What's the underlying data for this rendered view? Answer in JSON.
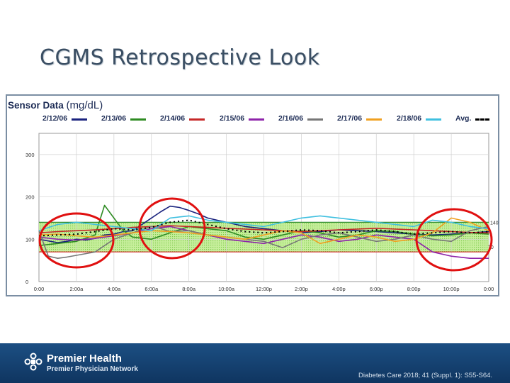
{
  "slide": {
    "title": "CGMS Retrospective Look"
  },
  "chart_data": {
    "type": "line",
    "title": "Sensor Data",
    "title_unit": "(mg/dL)",
    "x_ticks": [
      "0:00",
      "2:00a",
      "4:00a",
      "6:00a",
      "8:00a",
      "10:00a",
      "12:00p",
      "2:00p",
      "4:00p",
      "6:00p",
      "8:00p",
      "10:00p",
      "0:00"
    ],
    "x_range_hours": [
      0,
      24
    ],
    "y_ticks": [
      0,
      100,
      200,
      300
    ],
    "y_tick_labels": [
      "0",
      "100",
      "200",
      "300"
    ],
    "ylim": [
      0,
      350
    ],
    "target_range": {
      "low": 70,
      "high": 140,
      "right_labels": [
        "140",
        "70"
      ]
    },
    "grid": true,
    "legend_position": "top",
    "series": [
      {
        "name": "2/12/06",
        "color": "#1a237e",
        "x": [
          0,
          0.5,
          1,
          1.5,
          2,
          2.5,
          3,
          3.5,
          4,
          4.5,
          5,
          5.5,
          6,
          6.5,
          7,
          7.5,
          8,
          8.5,
          9,
          10,
          11,
          12,
          13,
          14,
          15,
          16,
          17,
          18,
          19,
          20,
          21,
          22,
          23,
          24
        ],
        "y": [
          100,
          96,
          92,
          95,
          100,
          98,
          102,
          110,
          112,
          118,
          120,
          135,
          150,
          165,
          178,
          175,
          168,
          160,
          150,
          140,
          130,
          125,
          120,
          115,
          118,
          122,
          120,
          118,
          115,
          112,
          110,
          112,
          115,
          118
        ]
      },
      {
        "name": "2/13/06",
        "color": "#2e8b22",
        "x": [
          0,
          1,
          2,
          3,
          3.5,
          4,
          4.5,
          5,
          6,
          7,
          8,
          9,
          10,
          11,
          12,
          13,
          14,
          15,
          16,
          17,
          18,
          19,
          20,
          21,
          22,
          23,
          24
        ],
        "y": [
          85,
          90,
          95,
          110,
          180,
          150,
          120,
          105,
          100,
          115,
          130,
          125,
          120,
          105,
          100,
          110,
          120,
          115,
          105,
          110,
          120,
          118,
          112,
          108,
          110,
          115,
          112
        ]
      },
      {
        "name": "2/14/06",
        "color": "#c62828",
        "x": [
          0,
          1,
          2,
          3,
          4,
          5,
          6,
          7,
          8,
          9,
          10,
          11,
          12,
          13,
          14,
          15,
          16,
          17,
          18,
          19,
          20,
          21,
          22,
          23,
          24
        ],
        "y": [
          115,
          118,
          120,
          122,
          125,
          128,
          130,
          132,
          130,
          128,
          126,
          124,
          122,
          120,
          118,
          120,
          122,
          124,
          126,
          124,
          122,
          120,
          118,
          116,
          115
        ]
      },
      {
        "name": "2/15/06",
        "color": "#8e24aa",
        "x": [
          0,
          1,
          2,
          3,
          4,
          5,
          6,
          7,
          8,
          9,
          10,
          11,
          12,
          13,
          14,
          15,
          16,
          17,
          18,
          19,
          20,
          21,
          22,
          23,
          24
        ],
        "y": [
          105,
          100,
          98,
          102,
          108,
          115,
          125,
          130,
          120,
          110,
          100,
          95,
          90,
          100,
          110,
          105,
          95,
          100,
          110,
          105,
          100,
          70,
          60,
          55,
          55
        ]
      },
      {
        "name": "2/16/06",
        "color": "#777777",
        "x": [
          0,
          0.5,
          1,
          1.5,
          2,
          2.5,
          3,
          4,
          5,
          6,
          6.5,
          7,
          8,
          9,
          10,
          11,
          12,
          13,
          14,
          15,
          16,
          17,
          18,
          19,
          20,
          21,
          22,
          23,
          24
        ],
        "y": [
          120,
          60,
          55,
          58,
          62,
          66,
          70,
          100,
          115,
          130,
          125,
          118,
          120,
          110,
          105,
          100,
          95,
          80,
          100,
          110,
          115,
          105,
          95,
          100,
          110,
          100,
          95,
          120,
          130
        ]
      },
      {
        "name": "2/17/06",
        "color": "#f0a020",
        "x": [
          0,
          1,
          2,
          3,
          4,
          5,
          6,
          7,
          8,
          9,
          10,
          11,
          12,
          13,
          14,
          15,
          16,
          17,
          18,
          19,
          20,
          21,
          22,
          23,
          24
        ],
        "y": [
          110,
          112,
          108,
          105,
          110,
          115,
          120,
          118,
          115,
          110,
          105,
          100,
          110,
          120,
          115,
          90,
          100,
          110,
          105,
          95,
          100,
          115,
          150,
          140,
          120
        ]
      },
      {
        "name": "2/18/06",
        "color": "#40c0e0",
        "x": [
          0,
          1,
          2,
          3,
          4,
          5,
          6,
          7,
          8,
          9,
          10,
          11,
          12,
          13,
          14,
          15,
          16,
          17,
          18,
          19,
          20,
          21,
          22,
          23,
          24
        ],
        "y": [
          120,
          135,
          140,
          135,
          130,
          125,
          120,
          150,
          155,
          145,
          140,
          135,
          130,
          140,
          150,
          155,
          150,
          145,
          140,
          135,
          130,
          145,
          140,
          130,
          125
        ]
      },
      {
        "name": "Avg.",
        "color": "#000000",
        "dashed": true,
        "x": [
          0,
          1,
          2,
          3,
          4,
          5,
          6,
          7,
          8,
          9,
          10,
          11,
          12,
          13,
          14,
          15,
          16,
          17,
          18,
          19,
          20,
          21,
          22,
          23,
          24
        ],
        "y": [
          108,
          110,
          112,
          118,
          125,
          122,
          128,
          140,
          145,
          135,
          125,
          118,
          115,
          118,
          122,
          120,
          115,
          118,
          122,
          118,
          112,
          115,
          118,
          115,
          118
        ]
      }
    ],
    "annotations": [
      "red-circle-midnight-to-3am",
      "red-circle-dawn-rise",
      "red-circle-late-night"
    ]
  },
  "footer": {
    "brand": "Premier Health",
    "network": "Premier Physician Network",
    "citation": "Diabetes Care 2018; 41 (Suppl. 1): S55-S64."
  }
}
